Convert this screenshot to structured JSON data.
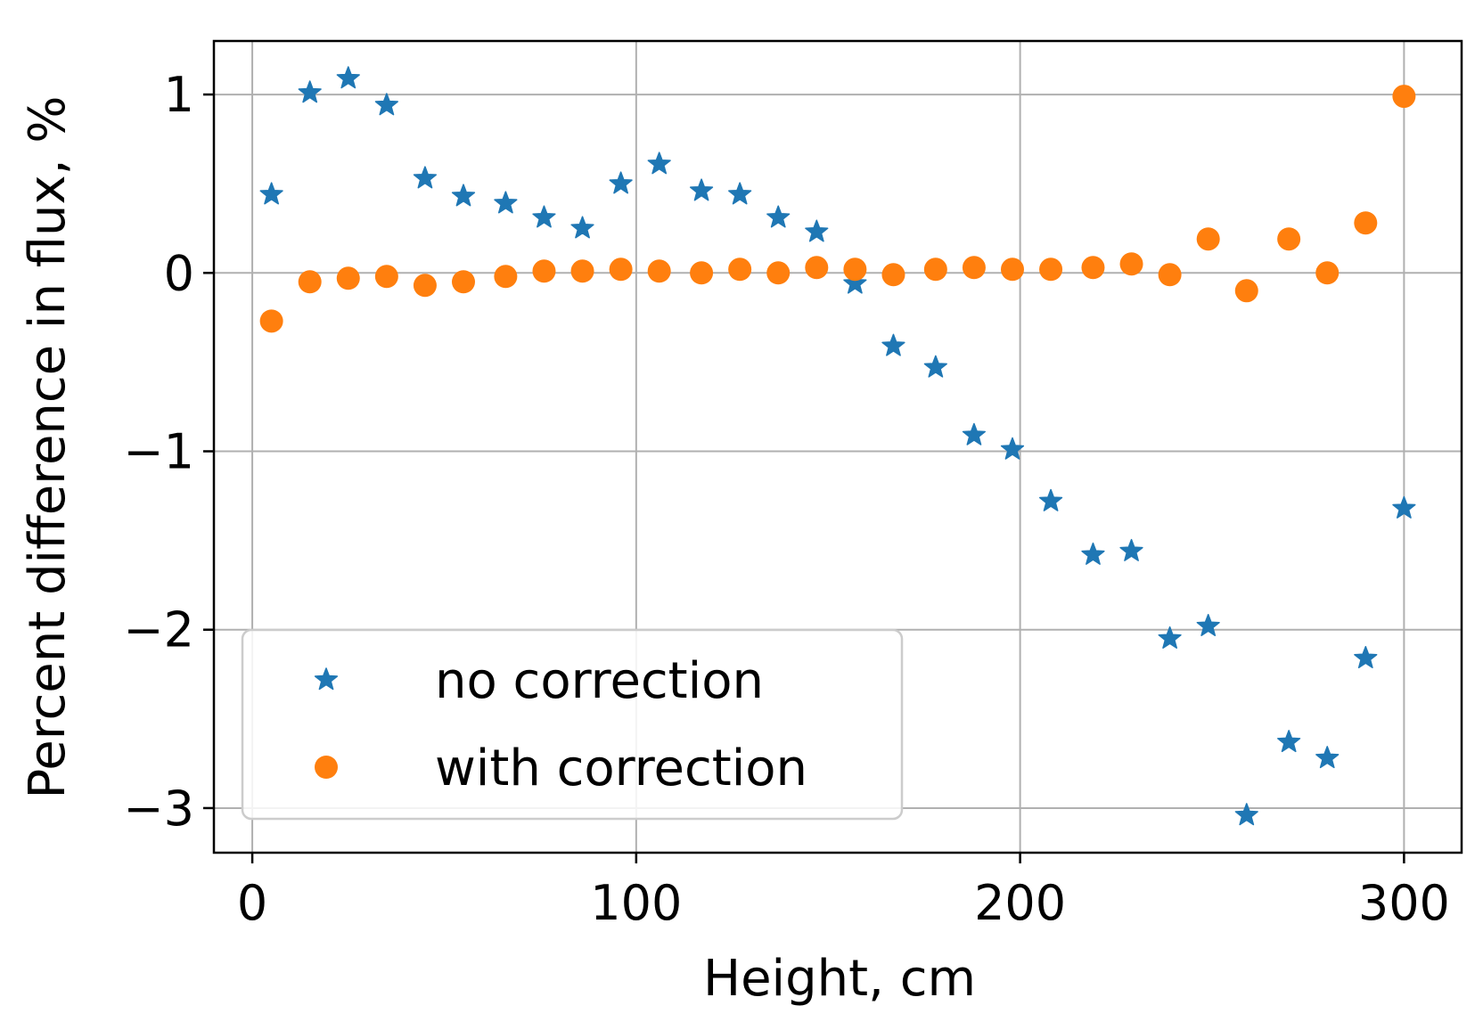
{
  "chart_data": {
    "type": "scatter",
    "title": "",
    "xlabel": "Height, cm",
    "ylabel": "Percent difference in flux, %",
    "xlim": [
      -10,
      315
    ],
    "ylim": [
      -3.25,
      1.3
    ],
    "xticks": [
      0,
      100,
      200,
      300
    ],
    "yticks": [
      1,
      0,
      -1,
      -2,
      -3
    ],
    "xtick_labels": [
      "0",
      "100",
      "200",
      "300"
    ],
    "ytick_labels": [
      "1",
      "0",
      "−1",
      "−2",
      "−3"
    ],
    "grid": true,
    "legend_position": "lower-left",
    "x": [
      5,
      15,
      25,
      35,
      45,
      55,
      66,
      76,
      86,
      96,
      106,
      117,
      127,
      137,
      147,
      157,
      167,
      178,
      188,
      198,
      208,
      219,
      229,
      239,
      249,
      259,
      270,
      280,
      290,
      300
    ],
    "series": [
      {
        "name": "no correction",
        "marker": "star",
        "color": "#1f77b4",
        "values": [
          0.44,
          1.01,
          1.09,
          0.94,
          0.53,
          0.43,
          0.39,
          0.31,
          0.25,
          0.5,
          0.61,
          0.46,
          0.44,
          0.31,
          0.23,
          -0.06,
          -0.41,
          -0.53,
          -0.91,
          -0.99,
          -1.28,
          -1.58,
          -1.56,
          -2.05,
          -1.98,
          -3.04,
          -2.63,
          -2.72,
          -2.16,
          -1.32
        ]
      },
      {
        "name": "with correction",
        "marker": "circle",
        "color": "#ff7f0e",
        "values": [
          -0.27,
          -0.05,
          -0.03,
          -0.02,
          -0.07,
          -0.05,
          -0.02,
          0.01,
          0.01,
          0.02,
          0.01,
          0.0,
          0.02,
          0.0,
          0.03,
          0.02,
          -0.01,
          0.02,
          0.03,
          0.02,
          0.02,
          0.03,
          0.05,
          -0.01,
          0.19,
          -0.1,
          0.19,
          0.0,
          0.28,
          0.99
        ]
      }
    ]
  }
}
